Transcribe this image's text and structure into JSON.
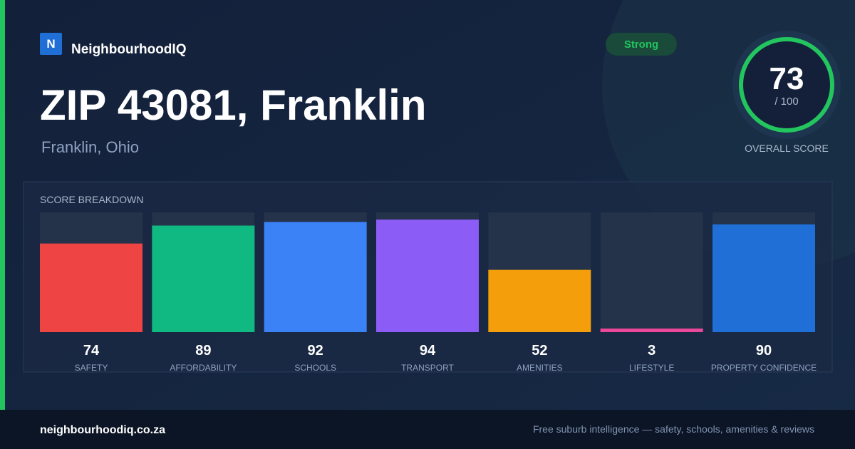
{
  "brand": {
    "logo": "N",
    "name": "NeighbourhoodIQ"
  },
  "header": {
    "title": "ZIP 43081, Franklin",
    "subtitle": "Franklin, Ohio"
  },
  "score": {
    "badge": "Strong",
    "value": 73,
    "max_label": "/ 100",
    "label": "OVERALL SCORE"
  },
  "chart_data": {
    "type": "bar",
    "title": "SCORE BREAKDOWN",
    "categories": [
      "SAFETY",
      "AFFORDABILITY",
      "SCHOOLS",
      "TRANSPORT",
      "AMENITIES",
      "LIFESTYLE",
      "PROPERTY CONFIDENCE"
    ],
    "values": [
      74,
      89,
      92,
      94,
      52,
      3,
      90
    ],
    "colors": [
      "#ef4444",
      "#10b981",
      "#3b82f6",
      "#8b5cf6",
      "#f59e0b",
      "#ec4899",
      "#1f6fd6"
    ],
    "ylim": [
      0,
      100
    ]
  },
  "footer": {
    "site": "neighbourhoodiq.co.za",
    "tagline": "Free suburb intelligence — safety, schools, amenities & reviews"
  }
}
